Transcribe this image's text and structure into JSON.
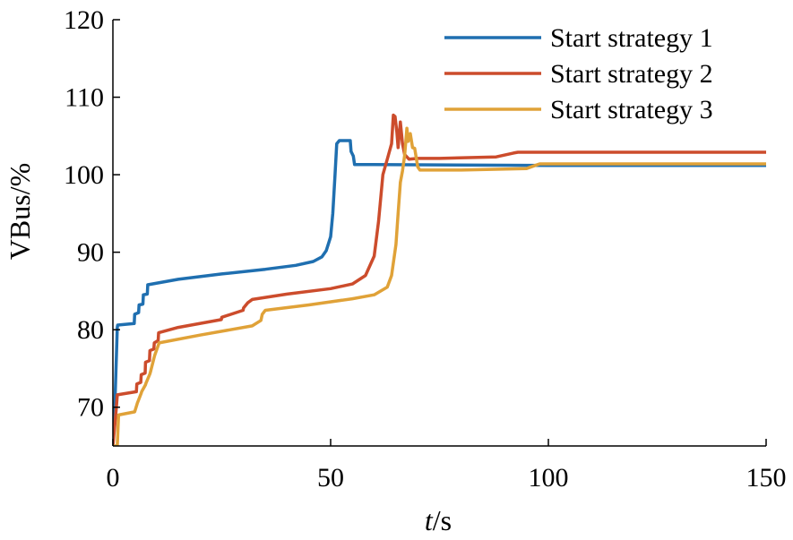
{
  "chart_data": {
    "type": "line",
    "title": "",
    "xlabel_italic": "t",
    "xlabel_rest": "/s",
    "ylabel": "VBus/%",
    "xlim": [
      0,
      150
    ],
    "ylim": [
      65,
      120
    ],
    "xticks": [
      0,
      50,
      100,
      150
    ],
    "yticks": [
      70,
      80,
      90,
      100,
      110,
      120
    ],
    "grid": false,
    "legend_position": "top-right",
    "series": [
      {
        "name": "Start strategy 1",
        "color": "#1f6fb0",
        "x": [
          0,
          0.5,
          1,
          1.1,
          4.9,
          5,
          5.9,
          6,
          6.9,
          7,
          7.9,
          8,
          15,
          25,
          35,
          42,
          46,
          48,
          49,
          50,
          50.5,
          51,
          51.4,
          52,
          54.5,
          54.7,
          55.2,
          55.5,
          60,
          100,
          150
        ],
        "values": [
          65,
          71,
          80.3,
          80.6,
          80.8,
          82,
          82.2,
          83.2,
          83.3,
          84.5,
          84.6,
          85.8,
          86.5,
          87.2,
          87.8,
          88.3,
          88.8,
          89.4,
          90.2,
          92,
          95,
          100,
          104,
          104.4,
          104.4,
          103,
          102.4,
          101.3,
          101.3,
          101.2,
          101.2
        ]
      },
      {
        "name": "Start strategy 2",
        "color": "#cc4c2c",
        "x": [
          0,
          0.8,
          1,
          5.4,
          5.5,
          6.4,
          6.5,
          7.4,
          7.5,
          8.4,
          8.5,
          9.4,
          9.5,
          10.4,
          10.5,
          15,
          24.9,
          25,
          29.9,
          30,
          31,
          32,
          33,
          40,
          50,
          55,
          58,
          60,
          61,
          62,
          63,
          64,
          64.4,
          64.8,
          65.2,
          65.5,
          66,
          66.5,
          67,
          68,
          70,
          75,
          88,
          92,
          93,
          150
        ],
        "values": [
          65,
          70,
          71.6,
          72,
          73,
          73.2,
          74.2,
          74.4,
          75.8,
          76,
          77.3,
          77.5,
          78.3,
          78.6,
          79.6,
          80.3,
          81.3,
          81.6,
          82.5,
          82.8,
          83.5,
          83.9,
          84,
          84.6,
          85.3,
          85.9,
          87,
          89.5,
          94,
          100,
          102,
          104,
          107.7,
          107.5,
          105.5,
          103.5,
          106.8,
          104,
          102.6,
          102,
          102.1,
          102.1,
          102.3,
          102.8,
          102.9,
          102.9
        ]
      },
      {
        "name": "Start strategy 3",
        "color": "#e0a238",
        "x": [
          0,
          1,
          1.3,
          5,
          5.5,
          5.6,
          6.5,
          6.6,
          7.5,
          7.6,
          8.5,
          8.6,
          9.5,
          9.6,
          10.5,
          10.6,
          20,
          32,
          34,
          34.3,
          35,
          45,
          55,
          60,
          63,
          64,
          65,
          65.5,
          66,
          66.5,
          67,
          67.5,
          67.8,
          68.3,
          68.8,
          69.3,
          70,
          70.5,
          80,
          95,
          97,
          98,
          150
        ],
        "values": [
          65,
          65,
          69,
          69.4,
          70.3,
          70.5,
          71.8,
          72,
          72.9,
          73.1,
          74.3,
          74.5,
          76.5,
          76.7,
          78.1,
          78.3,
          79.3,
          80.5,
          81.2,
          82,
          82.5,
          83.2,
          84,
          84.5,
          85.5,
          87,
          91,
          95,
          99,
          100.5,
          102.5,
          106,
          104.3,
          105.3,
          103.5,
          103.4,
          101,
          100.6,
          100.6,
          100.8,
          101.2,
          101.4,
          101.4
        ]
      }
    ]
  }
}
